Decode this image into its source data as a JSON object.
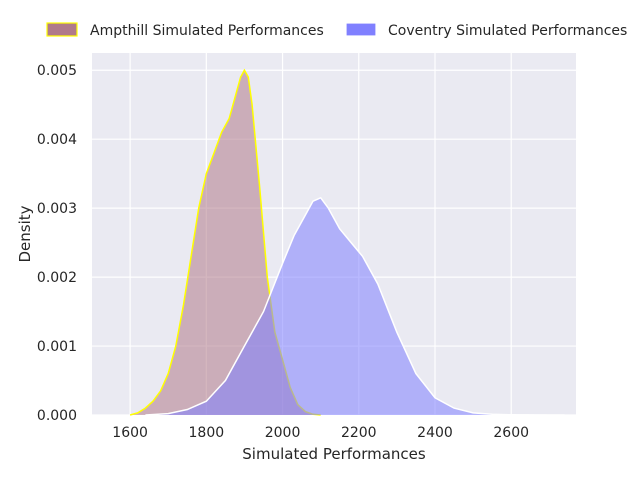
{
  "chart_data": {
    "type": "area",
    "xlabel": "Simulated Performances",
    "ylabel": "Density",
    "xlim": [
      1500,
      2770
    ],
    "ylim": [
      0,
      0.00525
    ],
    "x_ticks": [
      1600,
      1800,
      2000,
      2200,
      2400,
      2600
    ],
    "y_ticks": [
      0.0,
      0.001,
      0.002,
      0.003,
      0.004,
      0.005
    ],
    "x_tick_labels": [
      "1600",
      "1800",
      "2000",
      "2200",
      "2400",
      "2600"
    ],
    "y_tick_labels": [
      "0.000",
      "0.001",
      "0.002",
      "0.003",
      "0.004",
      "0.005"
    ],
    "grid": true,
    "legend_position": "top",
    "series": [
      {
        "name": "Ampthill Simulated Performances",
        "fill_color": "#b07a8a",
        "edge_color": "#ffff00",
        "x": [
          1600,
          1620,
          1640,
          1660,
          1680,
          1700,
          1720,
          1740,
          1760,
          1780,
          1800,
          1820,
          1840,
          1860,
          1880,
          1890,
          1900,
          1910,
          1920,
          1940,
          1960,
          1980,
          2000,
          2020,
          2040,
          2060,
          2080,
          2100
        ],
        "y": [
          0,
          3e-05,
          0.0001,
          0.0002,
          0.00035,
          0.0006,
          0.001,
          0.0016,
          0.0023,
          0.003,
          0.0035,
          0.0038,
          0.0041,
          0.0043,
          0.0047,
          0.0049,
          0.005,
          0.0049,
          0.0045,
          0.0033,
          0.002,
          0.0012,
          0.0008,
          0.0004,
          0.00015,
          5e-05,
          1e-05,
          0
        ]
      },
      {
        "name": "Coventry Simulated Performances",
        "fill_color": "#8080ff",
        "edge_color": "#ffffff",
        "x": [
          1640,
          1700,
          1750,
          1800,
          1850,
          1900,
          1950,
          2000,
          2030,
          2060,
          2080,
          2100,
          2120,
          2150,
          2180,
          2210,
          2250,
          2300,
          2350,
          2400,
          2450,
          2500,
          2550,
          2600,
          2650,
          2700,
          2740
        ],
        "y": [
          0,
          2e-05,
          8e-05,
          0.0002,
          0.0005,
          0.001,
          0.0015,
          0.0022,
          0.0026,
          0.0029,
          0.0031,
          0.00315,
          0.003,
          0.0027,
          0.0025,
          0.0023,
          0.0019,
          0.0012,
          0.0006,
          0.00025,
          0.0001,
          3e-05,
          1e-05,
          3e-06,
          1e-06,
          5e-07,
          0
        ]
      }
    ]
  }
}
